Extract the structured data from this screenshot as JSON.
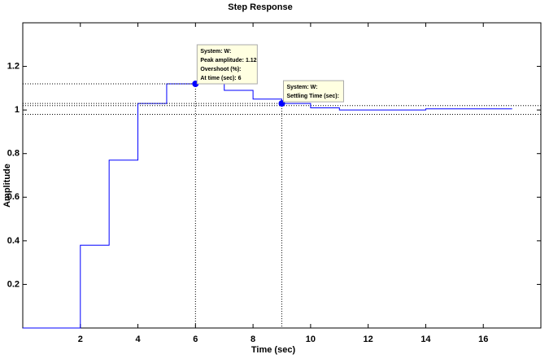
{
  "chart_data": {
    "type": "step",
    "title": "Step Response",
    "x_label": "Time  (sec)",
    "y_label": "Amplitude",
    "x": [
      0,
      1,
      2,
      3,
      4,
      5,
      6,
      7,
      8,
      9,
      10,
      11,
      12,
      13,
      14,
      15,
      16,
      17
    ],
    "series": [
      {
        "name": "W",
        "color": "#0000ff",
        "values": [
          0,
          0,
          0.38,
          0.77,
          1.03,
          1.12,
          1.12,
          1.09,
          1.05,
          1.03,
          1.01,
          1.0,
          1.0,
          1.0,
          1.005,
          1.005,
          1.005,
          1.005
        ]
      }
    ],
    "xlim": [
      0,
      18
    ],
    "ylim": [
      0,
      1.4
    ],
    "xticks": [
      2,
      4,
      6,
      8,
      10,
      12,
      14,
      16
    ],
    "yticks": [
      0.2,
      0.4,
      0.6,
      0.8,
      1,
      1.2
    ],
    "settling_bounds": [
      0.98,
      1.02
    ],
    "annotations": [
      {
        "x": 6,
        "y": 1.12,
        "lines": [
          "System: W:",
          "Peak amplitude: 1.12",
          "Overshoot (%):",
          "At time (sec): 6"
        ]
      },
      {
        "x": 9,
        "y": 1.03,
        "lines": [
          "System: W:",
          "Settling Time (sec):"
        ]
      }
    ]
  }
}
